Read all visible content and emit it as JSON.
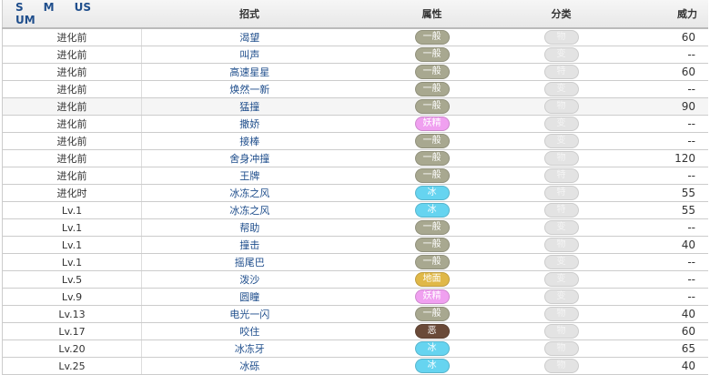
{
  "header": {
    "gens": [
      "S",
      "M",
      "US",
      "UM"
    ],
    "move": "招式",
    "type": "属性",
    "category": "分类",
    "power": "威力"
  },
  "type_colors": {
    "一般": "#a8a890",
    "妖精": "#f0a0f0",
    "冰": "#66d4f0",
    "地面": "#e0b848",
    "恶": "#6a4a38"
  },
  "rows": [
    {
      "level": "进化前",
      "move": "渴望",
      "type": "一般",
      "cat": "物",
      "power": "60"
    },
    {
      "level": "进化前",
      "move": "叫声",
      "type": "一般",
      "cat": "变",
      "power": "--"
    },
    {
      "level": "进化前",
      "move": "高速星星",
      "type": "一般",
      "cat": "特",
      "power": "60"
    },
    {
      "level": "进化前",
      "move": "焕然一新",
      "type": "一般",
      "cat": "变",
      "power": "--"
    },
    {
      "level": "进化前",
      "move": "猛撞",
      "type": "一般",
      "cat": "物",
      "power": "90"
    },
    {
      "level": "进化前",
      "move": "撒娇",
      "type": "妖精",
      "cat": "变",
      "power": "--"
    },
    {
      "level": "进化前",
      "move": "接棒",
      "type": "一般",
      "cat": "变",
      "power": "--"
    },
    {
      "level": "进化前",
      "move": "舍身冲撞",
      "type": "一般",
      "cat": "物",
      "power": "120"
    },
    {
      "level": "进化前",
      "move": "王牌",
      "type": "一般",
      "cat": "特",
      "power": "--"
    },
    {
      "level": "进化时",
      "move": "冰冻之风",
      "type": "冰",
      "cat": "特",
      "power": "55"
    },
    {
      "level": "Lv.1",
      "move": "冰冻之风",
      "type": "冰",
      "cat": "特",
      "power": "55"
    },
    {
      "level": "Lv.1",
      "move": "帮助",
      "type": "一般",
      "cat": "变",
      "power": "--"
    },
    {
      "level": "Lv.1",
      "move": "撞击",
      "type": "一般",
      "cat": "物",
      "power": "40"
    },
    {
      "level": "Lv.1",
      "move": "摇尾巴",
      "type": "一般",
      "cat": "变",
      "power": "--"
    },
    {
      "level": "Lv.5",
      "move": "泼沙",
      "type": "地面",
      "cat": "变",
      "power": "--"
    },
    {
      "level": "Lv.9",
      "move": "圆瞳",
      "type": "妖精",
      "cat": "变",
      "power": "--"
    },
    {
      "level": "Lv.13",
      "move": "电光一闪",
      "type": "一般",
      "cat": "物",
      "power": "40"
    },
    {
      "level": "Lv.17",
      "move": "咬住",
      "type": "恶",
      "cat": "物",
      "power": "60"
    },
    {
      "level": "Lv.20",
      "move": "冰冻牙",
      "type": "冰",
      "cat": "物",
      "power": "65"
    },
    {
      "level": "Lv.25",
      "move": "冰砾",
      "type": "冰",
      "cat": "物",
      "power": "40"
    }
  ]
}
